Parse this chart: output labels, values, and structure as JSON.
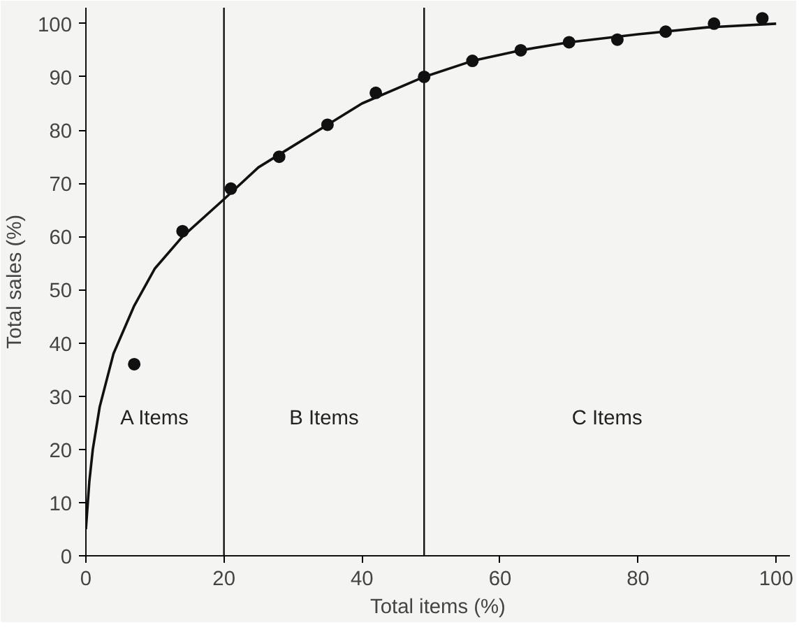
{
  "chart_data": {
    "type": "scatter",
    "xlabel": "Total items (%)",
    "ylabel": "Total sales (%)",
    "xlim": [
      0,
      102
    ],
    "ylim": [
      0,
      103
    ],
    "xticks": [
      0,
      20,
      40,
      60,
      80,
      100
    ],
    "yticks": [
      0,
      10,
      20,
      30,
      40,
      50,
      60,
      70,
      80,
      90,
      100
    ],
    "grid": false,
    "marker": "circle",
    "series": [
      {
        "color": "#111111",
        "x": [
          7,
          14,
          21,
          28,
          35,
          42,
          49,
          56,
          63,
          70,
          77,
          84,
          91,
          98
        ],
        "values": [
          36,
          61,
          69,
          75,
          81,
          87,
          90,
          93,
          95,
          96.5,
          97,
          98.5,
          100,
          101
        ]
      },
      {
        "type": "line",
        "color": "#111111",
        "marker": "none",
        "line_style": "solid",
        "x": [
          0,
          0.5,
          1,
          2,
          4,
          7,
          10,
          14,
          20,
          25,
          30,
          35,
          40,
          49,
          56,
          63,
          70,
          80,
          90,
          100
        ],
        "values": [
          5,
          14,
          20,
          28,
          38,
          47,
          54,
          60,
          67,
          73,
          77,
          81,
          85,
          90,
          93,
          95,
          96.5,
          98,
          99.3,
          100
        ]
      }
    ],
    "ref_lines": [
      {
        "axis": "x",
        "value": 20,
        "color": "#111111"
      },
      {
        "axis": "x",
        "value": 49,
        "color": "#111111"
      }
    ],
    "annotations": [
      "A Items",
      "B Items",
      "C Items"
    ]
  }
}
